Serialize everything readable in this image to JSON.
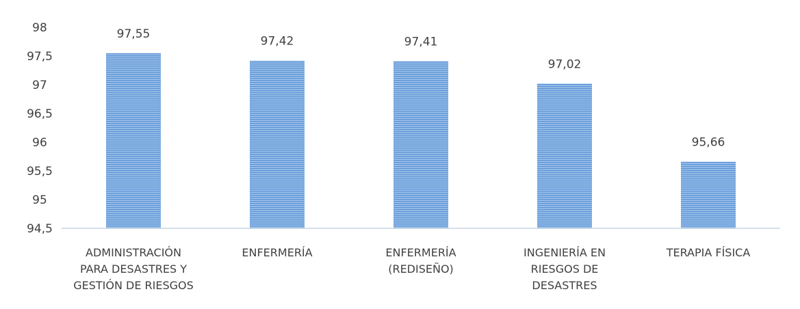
{
  "chart_data": {
    "type": "bar",
    "title": "",
    "xlabel": "",
    "ylabel": "",
    "categories": [
      [
        "ADMINISTRACIÓN",
        "PARA DESASTRES Y",
        "GESTIÓN DE RIESGOS"
      ],
      [
        "ENFERMERÍA"
      ],
      [
        "ENFERMERÍA",
        "(REDISEÑO)"
      ],
      [
        "INGENIERÍA EN",
        "RIESGOS DE",
        "DESASTRES"
      ],
      [
        "TERAPIA FÍSICA"
      ]
    ],
    "values": [
      97.55,
      97.42,
      97.41,
      97.02,
      95.66
    ],
    "value_labels": [
      "97,55",
      "97,42",
      "97,41",
      "97,02",
      "95,66"
    ],
    "ylim": [
      94.5,
      98
    ],
    "yticks": [
      94.5,
      95,
      95.5,
      96,
      96.5,
      97,
      97.5,
      98
    ],
    "ytick_labels": [
      "94,5",
      "95",
      "95,5",
      "96",
      "96,5",
      "97",
      "97,5",
      "98"
    ],
    "grid": false,
    "legend": "none",
    "bar_color": "#5b9bd5"
  }
}
